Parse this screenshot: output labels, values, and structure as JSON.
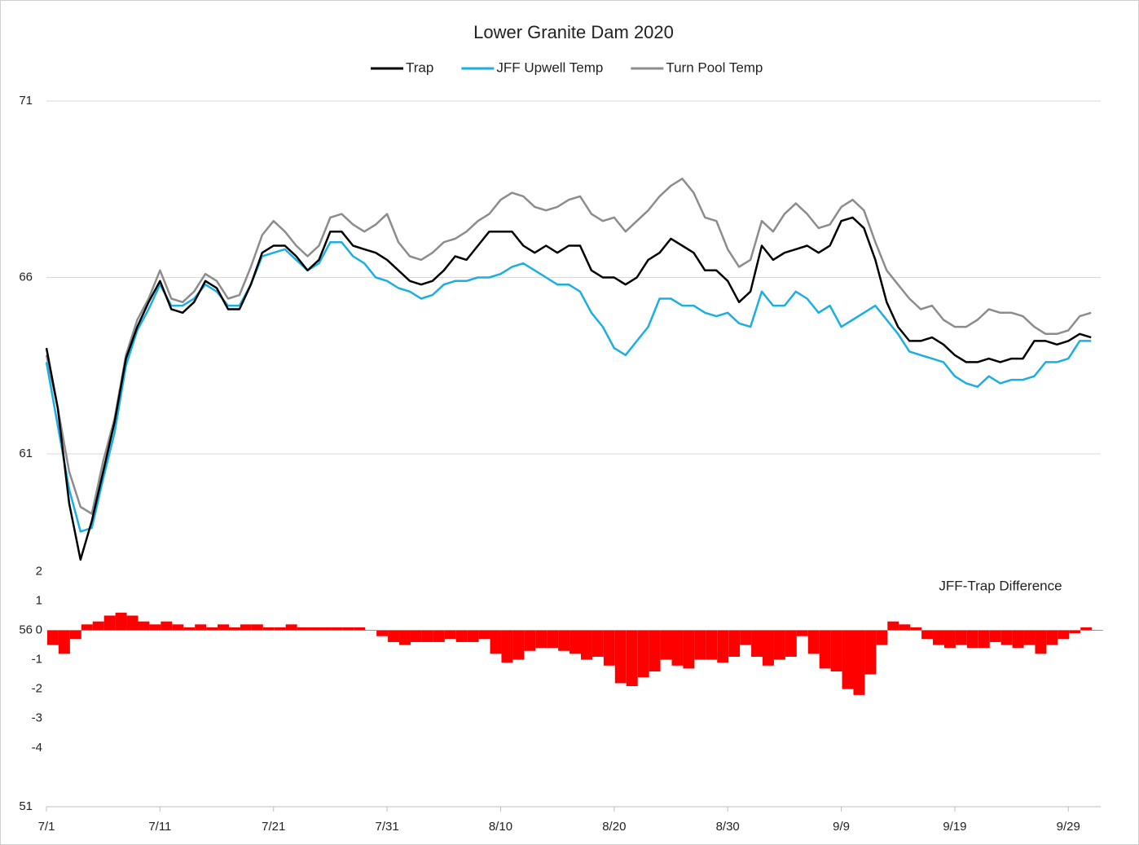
{
  "chart_data": {
    "type": "line",
    "title": "Lower Granite Dam 2020",
    "categories": [
      "7/1",
      null,
      null,
      null,
      null,
      null,
      null,
      null,
      null,
      null,
      "7/11",
      null,
      null,
      null,
      null,
      null,
      null,
      null,
      null,
      null,
      "7/21",
      null,
      null,
      null,
      null,
      null,
      null,
      null,
      null,
      null,
      "7/31",
      null,
      null,
      null,
      null,
      null,
      null,
      null,
      null,
      null,
      "8/10",
      null,
      null,
      null,
      null,
      null,
      null,
      null,
      null,
      null,
      "8/20",
      null,
      null,
      null,
      null,
      null,
      null,
      null,
      null,
      null,
      "8/30",
      null,
      null,
      null,
      null,
      null,
      null,
      null,
      null,
      null,
      "9/9",
      null,
      null,
      null,
      null,
      null,
      null,
      null,
      null,
      null,
      "9/19",
      null,
      null,
      null,
      null,
      null,
      null,
      null,
      null,
      null,
      "9/29",
      null,
      null
    ],
    "ylim": [
      51,
      71
    ],
    "yticks": [
      51,
      56,
      61,
      66,
      71
    ],
    "y2lim": [
      -6,
      18
    ],
    "y2ticks": [
      -4,
      -3,
      -2,
      -1,
      0,
      1,
      2
    ],
    "grid": true,
    "legend": "top",
    "series": [
      {
        "name": "Trap",
        "color": "#000000",
        "values": [
          64.0,
          62.3,
          59.6,
          58.0,
          59.1,
          60.5,
          61.9,
          63.7,
          64.6,
          65.3,
          65.9,
          65.1,
          65.0,
          65.3,
          65.9,
          65.7,
          65.1,
          65.1,
          65.8,
          66.7,
          66.9,
          66.9,
          66.6,
          66.2,
          66.5,
          67.3,
          67.3,
          66.9,
          66.8,
          66.7,
          66.5,
          66.2,
          65.9,
          65.8,
          65.9,
          66.2,
          66.6,
          66.5,
          66.9,
          67.3,
          67.3,
          67.3,
          66.9,
          66.7,
          66.9,
          66.7,
          66.9,
          66.9,
          66.2,
          66.0,
          66.0,
          65.8,
          66.0,
          66.5,
          66.7,
          67.1,
          66.9,
          66.7,
          66.2,
          66.2,
          65.9,
          65.3,
          65.6,
          66.9,
          66.5,
          66.7,
          66.8,
          66.9,
          66.7,
          66.9,
          67.6,
          67.7,
          67.4,
          66.5,
          65.3,
          64.6,
          64.2,
          64.2,
          64.3,
          64.1,
          63.8,
          63.6,
          63.6,
          63.7,
          63.6,
          63.7,
          63.7,
          64.2,
          64.2,
          64.1,
          64.2,
          64.4,
          64.3
        ]
      },
      {
        "name": "JFF Upwell Temp",
        "color": "#1aaee5",
        "values": [
          63.6,
          61.8,
          60.0,
          58.8,
          58.9,
          60.3,
          61.6,
          63.5,
          64.5,
          65.1,
          65.8,
          65.2,
          65.2,
          65.4,
          65.8,
          65.6,
          65.2,
          65.2,
          65.8,
          66.6,
          66.7,
          66.8,
          66.5,
          66.2,
          66.4,
          67.0,
          67.0,
          66.6,
          66.4,
          66.0,
          65.9,
          65.7,
          65.6,
          65.4,
          65.5,
          65.8,
          65.9,
          65.9,
          66.0,
          66.0,
          66.1,
          66.3,
          66.4,
          66.2,
          66.0,
          65.8,
          65.8,
          65.6,
          65.0,
          64.6,
          64.0,
          63.8,
          64.2,
          64.6,
          65.4,
          65.4,
          65.2,
          65.2,
          65.0,
          64.9,
          65.0,
          64.7,
          64.6,
          65.6,
          65.2,
          65.2,
          65.6,
          65.4,
          65.0,
          65.2,
          64.6,
          64.8,
          65.0,
          65.2,
          64.8,
          64.4,
          63.9,
          63.8,
          63.7,
          63.6,
          63.2,
          63.0,
          62.9,
          63.2,
          63.0,
          63.1,
          63.1,
          63.2,
          63.6,
          63.6,
          63.7,
          64.2,
          64.2
        ]
      },
      {
        "name": "Turn Pool Temp",
        "color": "#8c8c8c",
        "values": [
          63.8,
          62.3,
          60.5,
          59.5,
          59.3,
          60.8,
          62.0,
          63.8,
          64.8,
          65.4,
          66.2,
          65.4,
          65.3,
          65.6,
          66.1,
          65.9,
          65.4,
          65.5,
          66.3,
          67.2,
          67.6,
          67.3,
          66.9,
          66.6,
          66.9,
          67.7,
          67.8,
          67.5,
          67.3,
          67.5,
          67.8,
          67.0,
          66.6,
          66.5,
          66.7,
          67.0,
          67.1,
          67.3,
          67.6,
          67.8,
          68.2,
          68.4,
          68.3,
          68.0,
          67.9,
          68.0,
          68.2,
          68.3,
          67.8,
          67.6,
          67.7,
          67.3,
          67.6,
          67.9,
          68.3,
          68.6,
          68.8,
          68.4,
          67.7,
          67.6,
          66.8,
          66.3,
          66.5,
          67.6,
          67.3,
          67.8,
          68.1,
          67.8,
          67.4,
          67.5,
          68.0,
          68.2,
          67.9,
          67.0,
          66.2,
          65.8,
          65.4,
          65.1,
          65.2,
          64.8,
          64.6,
          64.6,
          64.8,
          65.1,
          65.0,
          65.0,
          64.9,
          64.6,
          64.4,
          64.4,
          64.5,
          64.9,
          65.0
        ]
      },
      {
        "name": "JFF-Trap Difference",
        "type": "bar",
        "axis": "y2",
        "color": "#ff0000",
        "values": [
          -0.5,
          -0.8,
          -0.3,
          0.2,
          0.3,
          0.5,
          0.6,
          0.5,
          0.3,
          0.2,
          0.3,
          0.2,
          0.1,
          0.2,
          0.1,
          0.2,
          0.1,
          0.2,
          0.2,
          0.1,
          0.1,
          0.2,
          0.1,
          0.1,
          0.1,
          0.1,
          0.1,
          0.1,
          0.0,
          -0.2,
          -0.4,
          -0.5,
          -0.4,
          -0.4,
          -0.4,
          -0.3,
          -0.4,
          -0.4,
          -0.3,
          -0.8,
          -1.1,
          -1.0,
          -0.7,
          -0.6,
          -0.6,
          -0.7,
          -0.8,
          -1.0,
          -0.9,
          -1.2,
          -1.8,
          -1.9,
          -1.6,
          -1.4,
          -1.0,
          -1.2,
          -1.3,
          -1.0,
          -1.0,
          -1.1,
          -0.9,
          -0.5,
          -0.9,
          -1.2,
          -1.0,
          -0.9,
          -0.2,
          -0.8,
          -1.3,
          -1.4,
          -2.0,
          -2.2,
          -1.5,
          -0.5,
          0.3,
          0.2,
          0.1,
          -0.3,
          -0.5,
          -0.6,
          -0.5,
          -0.6,
          -0.6,
          -0.4,
          -0.5,
          -0.6,
          -0.5,
          -0.8,
          -0.5,
          -0.3,
          -0.1,
          0.1,
          0.0
        ]
      }
    ]
  }
}
